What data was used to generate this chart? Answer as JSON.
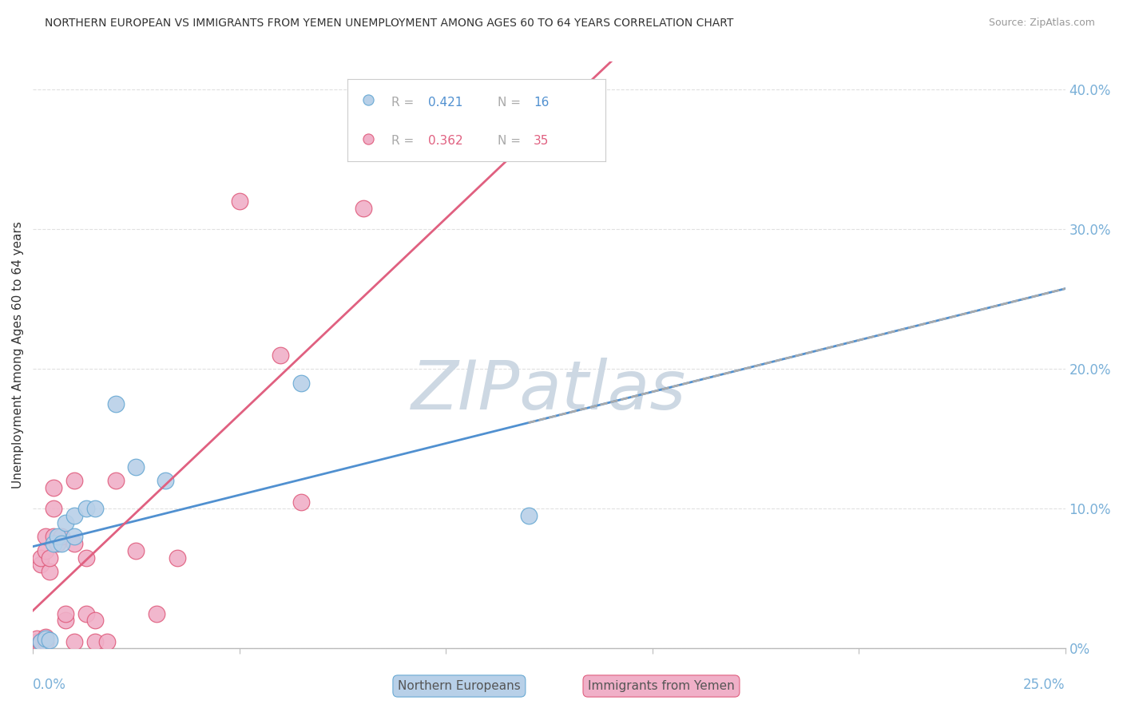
{
  "title": "NORTHERN EUROPEAN VS IMMIGRANTS FROM YEMEN UNEMPLOYMENT AMONG AGES 60 TO 64 YEARS CORRELATION CHART",
  "source": "Source: ZipAtlas.com",
  "ylabel": "Unemployment Among Ages 60 to 64 years",
  "xlim": [
    0.0,
    0.25
  ],
  "ylim": [
    0.0,
    0.42
  ],
  "blue_R": "0.421",
  "blue_N": "16",
  "pink_R": "0.362",
  "pink_N": "35",
  "blue_fill": "#b8d0e8",
  "blue_edge": "#6aaad4",
  "pink_fill": "#f0b0c8",
  "pink_edge": "#e06080",
  "blue_line": "#5090d0",
  "pink_line": "#e06080",
  "dashed_line": "#aaaaaa",
  "axis_color": "#7ab0d8",
  "grid_color": "#e0e0e0",
  "title_color": "#333333",
  "source_color": "#999999",
  "ylabel_color": "#333333",
  "watermark_color": "#cdd8e3",
  "blue_scatter_x": [
    0.002,
    0.003,
    0.004,
    0.005,
    0.006,
    0.007,
    0.008,
    0.01,
    0.01,
    0.013,
    0.015,
    0.02,
    0.025,
    0.032,
    0.065,
    0.12
  ],
  "blue_scatter_y": [
    0.005,
    0.007,
    0.006,
    0.075,
    0.08,
    0.075,
    0.09,
    0.08,
    0.095,
    0.1,
    0.1,
    0.175,
    0.13,
    0.12,
    0.19,
    0.095
  ],
  "pink_scatter_x": [
    0.001,
    0.001,
    0.002,
    0.002,
    0.002,
    0.002,
    0.003,
    0.003,
    0.003,
    0.003,
    0.004,
    0.004,
    0.005,
    0.005,
    0.005,
    0.006,
    0.007,
    0.008,
    0.008,
    0.01,
    0.01,
    0.01,
    0.013,
    0.013,
    0.015,
    0.015,
    0.018,
    0.02,
    0.025,
    0.03,
    0.035,
    0.05,
    0.06,
    0.065,
    0.08
  ],
  "pink_scatter_y": [
    0.005,
    0.007,
    0.003,
    0.005,
    0.06,
    0.065,
    0.005,
    0.008,
    0.07,
    0.08,
    0.055,
    0.065,
    0.08,
    0.1,
    0.115,
    0.075,
    0.08,
    0.02,
    0.025,
    0.005,
    0.075,
    0.12,
    0.065,
    0.025,
    0.005,
    0.02,
    0.005,
    0.12,
    0.07,
    0.025,
    0.065,
    0.32,
    0.21,
    0.105,
    0.315
  ],
  "ytick_vals": [
    0.0,
    0.1,
    0.2,
    0.3,
    0.4
  ],
  "ytick_labels": [
    "0%",
    "10.0%",
    "20.0%",
    "30.0%",
    "40.0%"
  ],
  "xtick_vals": [
    0.0,
    0.05,
    0.1,
    0.15,
    0.2,
    0.25
  ]
}
